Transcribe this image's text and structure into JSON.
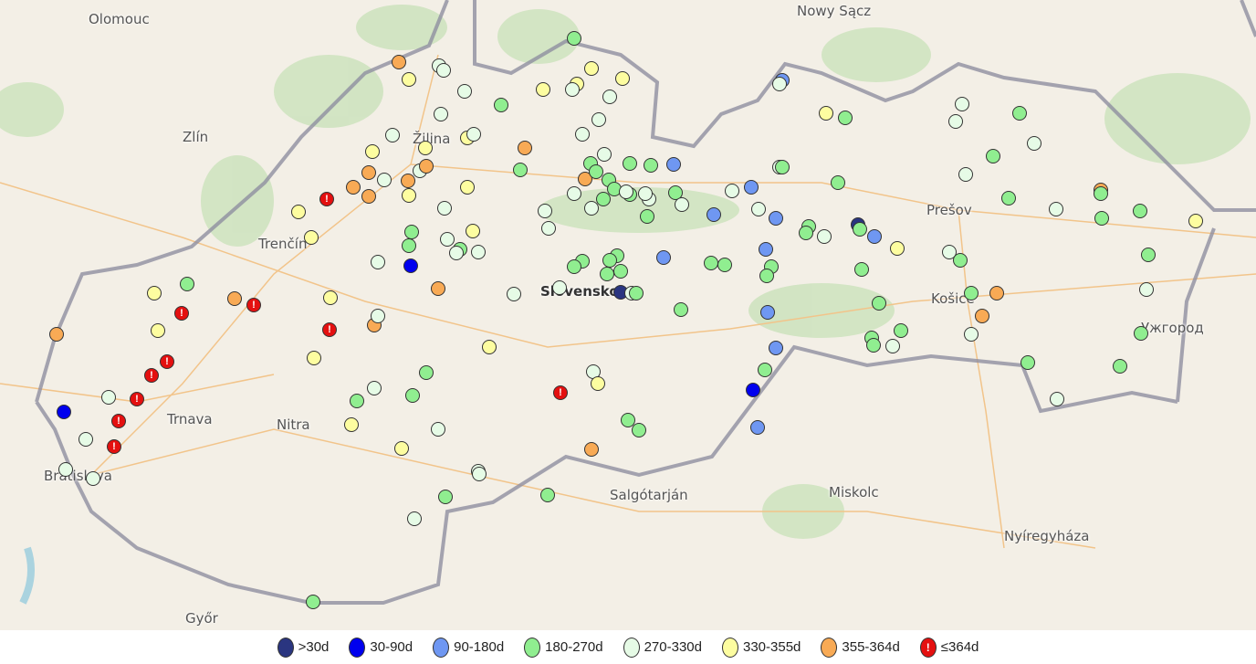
{
  "map": {
    "places": [
      {
        "name": "Olomouc",
        "bold": false
      },
      {
        "name": "Nowy Sącz",
        "bold": false
      },
      {
        "name": "Zlín",
        "bold": false
      },
      {
        "name": "Žilina",
        "bold": false
      },
      {
        "name": "Trenčín",
        "bold": false
      },
      {
        "name": "Prešov",
        "bold": false
      },
      {
        "name": "Košice",
        "bold": false
      },
      {
        "name": "Ужгород",
        "bold": false
      },
      {
        "name": "Slovensko",
        "bold": true
      },
      {
        "name": "Trnava",
        "bold": false
      },
      {
        "name": "Nitra",
        "bold": false
      },
      {
        "name": "Bratislava",
        "bold": false
      },
      {
        "name": "Salgótarján",
        "bold": false
      },
      {
        "name": "Miskolc",
        "bold": false
      },
      {
        "name": "Nyíregyháza",
        "bold": false
      },
      {
        "name": "Győr",
        "bold": false
      }
    ]
  },
  "legend": [
    {
      "key": "N",
      "label": ">30d",
      "color": "#2a3580",
      "icon": ""
    },
    {
      "key": "B",
      "label": "30-90d",
      "color": "#0000ee",
      "icon": ""
    },
    {
      "key": "L",
      "label": "90-180d",
      "color": "#6f97f2",
      "icon": ""
    },
    {
      "key": "G",
      "label": "180-270d",
      "color": "#90ee90",
      "icon": ""
    },
    {
      "key": "W",
      "label": "270-330d",
      "color": "#e6fbe6",
      "icon": ""
    },
    {
      "key": "Y",
      "label": "330-355d",
      "color": "#fdfda0",
      "icon": ""
    },
    {
      "key": "O",
      "label": "355-364d",
      "color": "#f8aa55",
      "icon": ""
    },
    {
      "key": "R",
      "label": "≤364d",
      "color": "#e41010",
      "icon": "!"
    }
  ]
}
